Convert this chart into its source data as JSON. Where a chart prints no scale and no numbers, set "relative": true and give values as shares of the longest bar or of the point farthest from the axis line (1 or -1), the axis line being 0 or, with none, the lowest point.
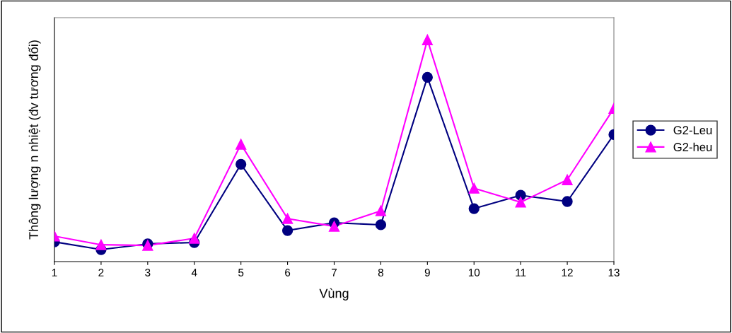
{
  "chart_data": {
    "type": "line",
    "relative": true,
    "xlabel": "Vùng",
    "ylabel": "Thông lượng n nhiệt (đv tương đối)",
    "categories": [
      "1",
      "2",
      "3",
      "4",
      "5",
      "6",
      "7",
      "8",
      "9",
      "10",
      "11",
      "12",
      "13"
    ],
    "series": [
      {
        "name": "G2-Leu",
        "color": "#000080",
        "marker": "circle",
        "values": [
          0.089,
          0.054,
          0.08,
          0.086,
          0.439,
          0.14,
          0.175,
          0.166,
          0.831,
          0.239,
          0.299,
          0.271,
          0.573
        ]
      },
      {
        "name": "G2-heu",
        "color": "#ff00ff",
        "marker": "triangle",
        "values": [
          0.115,
          0.076,
          0.073,
          0.105,
          0.529,
          0.194,
          0.159,
          0.229,
          1,
          0.331,
          0.268,
          0.369,
          0.691
        ]
      }
    ],
    "legend": "right",
    "grid": false,
    "line_style": "solid"
  }
}
